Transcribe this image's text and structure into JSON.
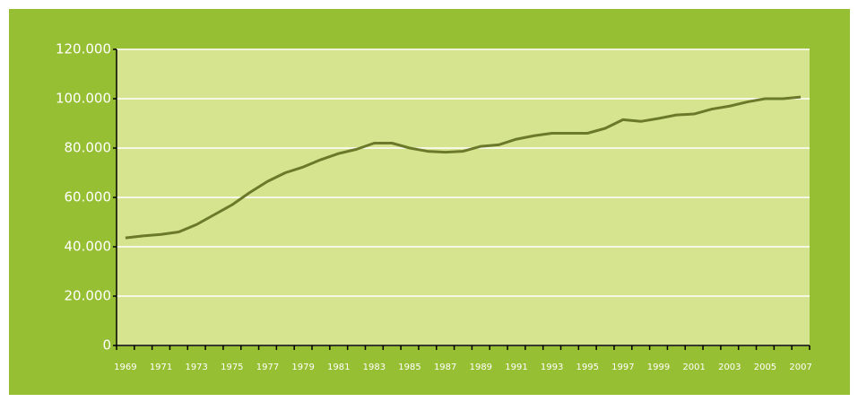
{
  "chart_data": {
    "type": "line",
    "categories": [
      "1969",
      null,
      "1971",
      null,
      "1973",
      null,
      "1975",
      null,
      "1977",
      null,
      "1979",
      null,
      "1981",
      null,
      "1983",
      null,
      "1985",
      null,
      "1987",
      null,
      "1989",
      null,
      "1991",
      null,
      "1993",
      null,
      "1995",
      null,
      "1997",
      null,
      "1999",
      null,
      "2001",
      null,
      "2003",
      null,
      "2005",
      null,
      "2007"
    ],
    "series": [
      {
        "color": "#6b7a2a",
        "values": [
          43600,
          44400,
          45000,
          46000,
          49000,
          53000,
          57000,
          62000,
          66500,
          70000,
          72300,
          75300,
          77800,
          79500,
          82000,
          82000,
          80000,
          78700,
          78300,
          78700,
          80700,
          81300,
          83600,
          85000,
          86000,
          86000,
          86000,
          88000,
          91500,
          90800,
          92000,
          93400,
          93800,
          95800,
          97000,
          98700,
          100000,
          100000,
          100700
        ]
      }
    ],
    "ylim": [
      0,
      120000
    ],
    "yticks": [
      {
        "value": 0,
        "label": "0"
      },
      {
        "value": 20000,
        "label": "20.000"
      },
      {
        "value": 40000,
        "label": "40.000"
      },
      {
        "value": 60000,
        "label": "60.000"
      },
      {
        "value": 80000,
        "label": "80.000"
      },
      {
        "value": 100000,
        "label": "100.000"
      },
      {
        "value": 120000,
        "label": "120.000"
      }
    ],
    "grid": true
  }
}
